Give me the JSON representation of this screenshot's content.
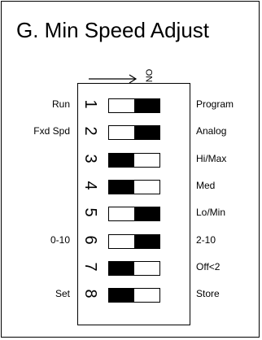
{
  "title": "G. Min Speed Adjust",
  "on_label": "ON",
  "switches": [
    {
      "number": "1",
      "left_label": "Run",
      "right_label": "Program",
      "state": "on"
    },
    {
      "number": "2",
      "left_label": "Fxd Spd",
      "right_label": "Analog",
      "state": "on"
    },
    {
      "number": "3",
      "left_label": "",
      "right_label": "Hi/Max",
      "state": "off"
    },
    {
      "number": "4",
      "left_label": "",
      "right_label": "Med",
      "state": "off"
    },
    {
      "number": "5",
      "left_label": "",
      "right_label": "Lo/Min",
      "state": "on"
    },
    {
      "number": "6",
      "left_label": "0-10",
      "right_label": "2-10",
      "state": "on"
    },
    {
      "number": "7",
      "left_label": "",
      "right_label": "Off<2",
      "state": "off"
    },
    {
      "number": "8",
      "left_label": "Set",
      "right_label": "Store",
      "state": "off"
    }
  ]
}
